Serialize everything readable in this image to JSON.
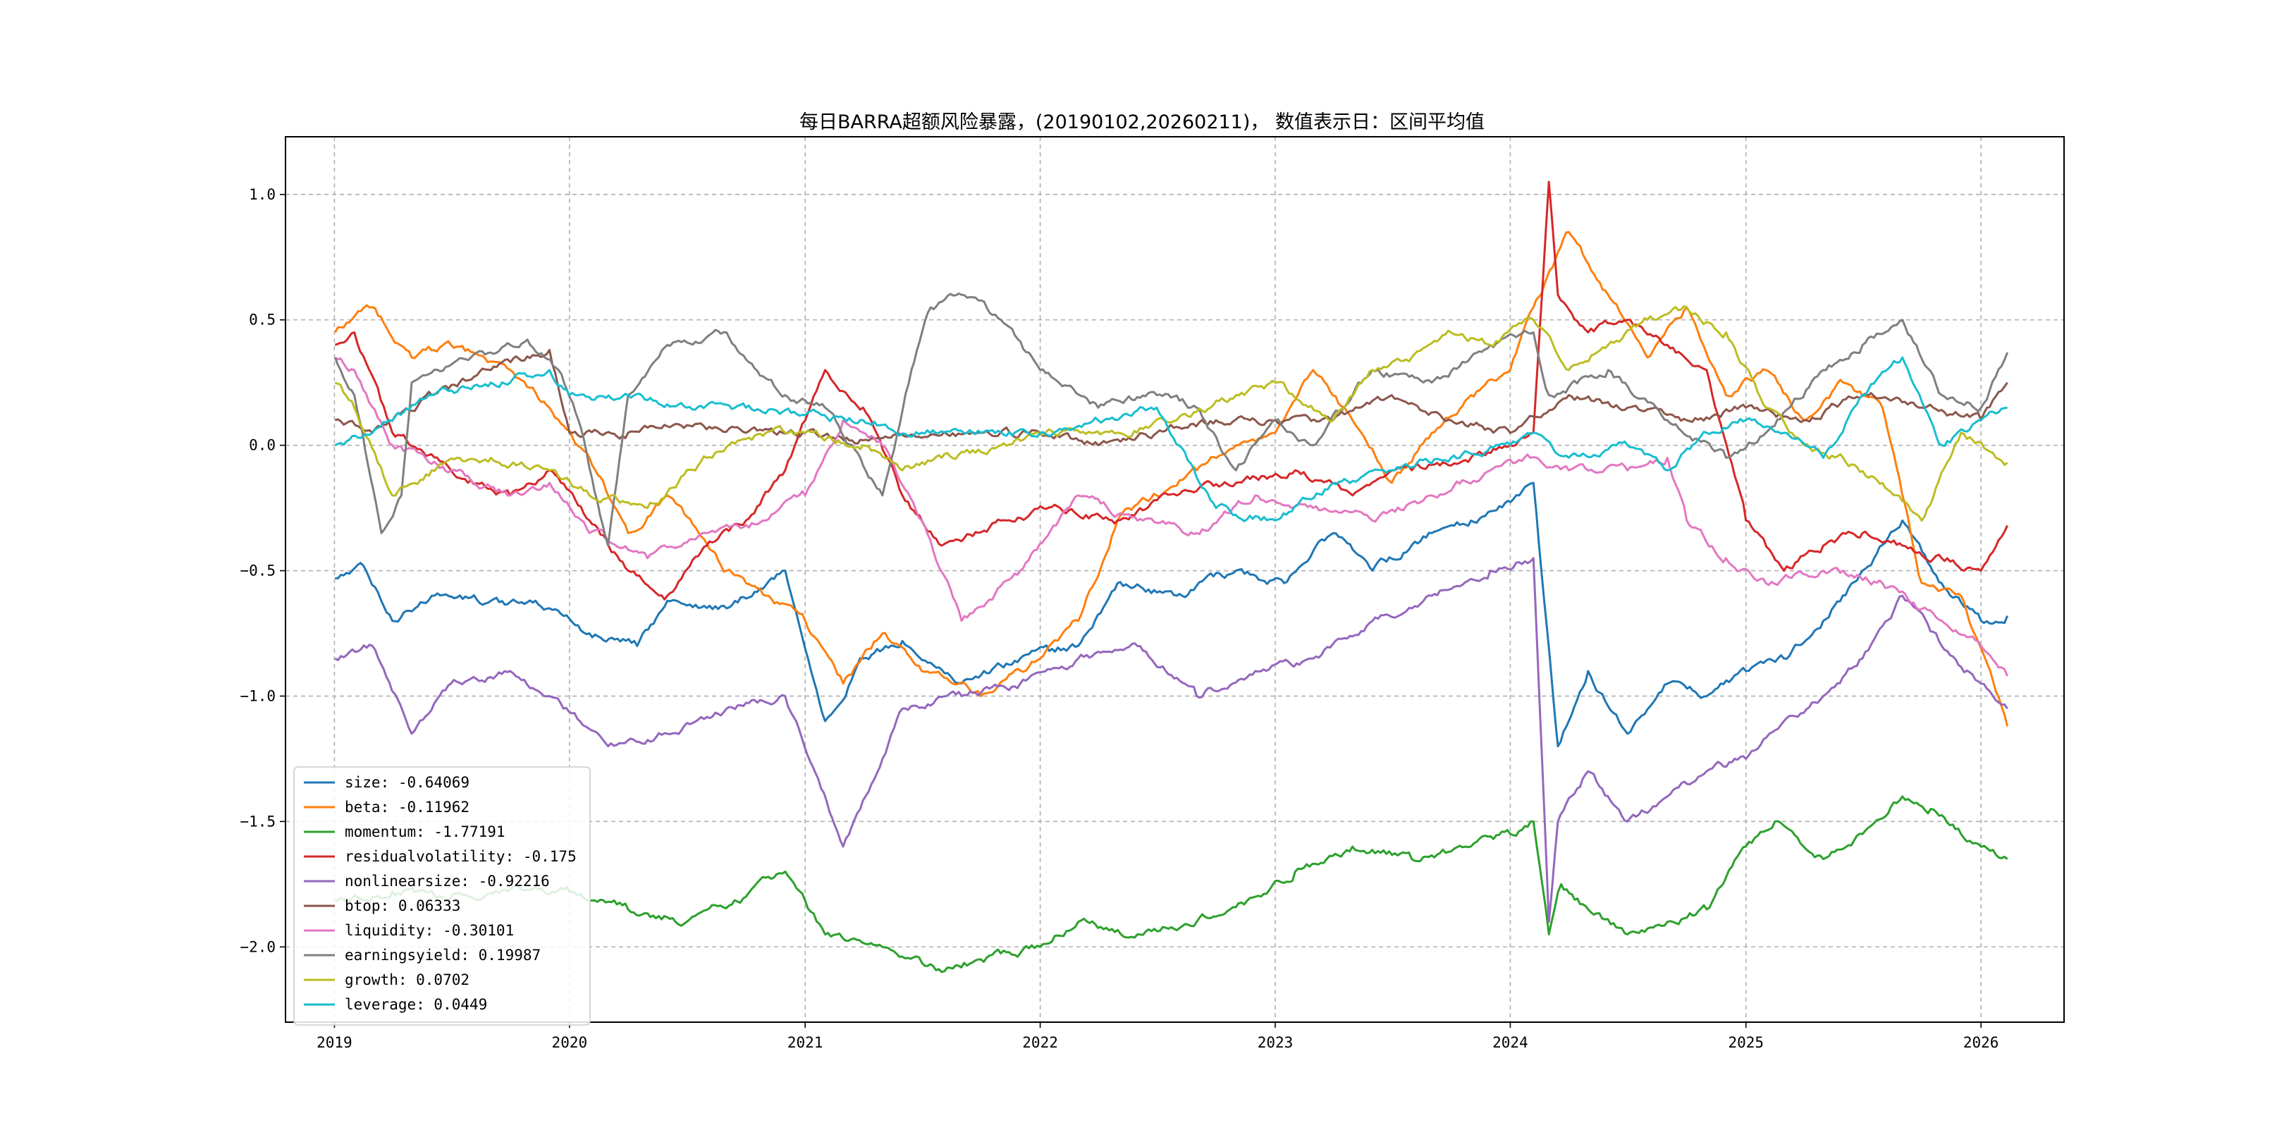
{
  "chart_data": {
    "type": "line",
    "title": "每日BARRA超额风险暴露，(20190102,20260211)， 数值表示日：区间平均值",
    "xlabel": "",
    "ylabel": "",
    "x_range": [
      "2018-10-17",
      "2026-05-10"
    ],
    "ylim": [
      -2.3,
      1.23
    ],
    "grid": true,
    "legend_position": "lower-left",
    "x_ticks": [
      {
        "date": "2019-01-01",
        "label": "2019"
      },
      {
        "date": "2020-01-01",
        "label": "2020"
      },
      {
        "date": "2021-01-01",
        "label": "2021"
      },
      {
        "date": "2022-01-01",
        "label": "2022"
      },
      {
        "date": "2023-01-01",
        "label": "2023"
      },
      {
        "date": "2024-01-01",
        "label": "2024"
      },
      {
        "date": "2025-01-01",
        "label": "2025"
      },
      {
        "date": "2026-01-01",
        "label": "2026"
      }
    ],
    "y_ticks": [
      {
        "value": 1.0,
        "label": "1.0"
      },
      {
        "value": 0.5,
        "label": "0.5"
      },
      {
        "value": 0.0,
        "label": "0.0"
      },
      {
        "value": -0.5,
        "label": "−0.5"
      },
      {
        "value": -1.0,
        "label": "−1.0"
      },
      {
        "value": -1.5,
        "label": "−1.5"
      },
      {
        "value": -2.0,
        "label": "−2.0"
      }
    ],
    "series": [
      {
        "name": "size",
        "legend": "size: -0.64069",
        "color": "#1f77b4",
        "x": [
          "2019-01-02",
          "2019-02-15",
          "2019-04-01",
          "2019-06-01",
          "2019-09-01",
          "2019-12-01",
          "2020-02-01",
          "2020-04-15",
          "2020-06-01",
          "2020-09-01",
          "2020-12-01",
          "2021-02-01",
          "2021-04-01",
          "2021-06-01",
          "2021-09-01",
          "2021-12-01",
          "2022-01-15",
          "2022-03-01",
          "2022-05-01",
          "2022-08-01",
          "2022-11-01",
          "2023-01-15",
          "2023-04-01",
          "2023-06-01",
          "2023-09-01",
          "2023-11-01",
          "2024-01-15",
          "2024-02-06",
          "2024-03-15",
          "2024-05-01",
          "2024-07-01",
          "2024-09-01",
          "2024-11-01",
          "2025-01-01",
          "2025-03-01",
          "2025-05-01",
          "2025-07-01",
          "2025-09-01",
          "2025-11-01",
          "2026-01-01",
          "2026-02-11"
        ],
        "values": [
          -0.53,
          -0.48,
          -0.7,
          -0.6,
          -0.62,
          -0.65,
          -0.75,
          -0.8,
          -0.62,
          -0.65,
          -0.5,
          -1.1,
          -0.85,
          -0.78,
          -0.95,
          -0.85,
          -0.82,
          -0.8,
          -0.55,
          -0.6,
          -0.5,
          -0.55,
          -0.35,
          -0.5,
          -0.35,
          -0.3,
          -0.2,
          -0.15,
          -1.2,
          -0.9,
          -1.15,
          -0.95,
          -1.0,
          -0.9,
          -0.85,
          -0.7,
          -0.5,
          -0.3,
          -0.55,
          -0.7,
          -0.68
        ]
      },
      {
        "name": "beta",
        "legend": "beta: -0.11962",
        "color": "#ff7f0e",
        "x": [
          "2019-01-02",
          "2019-03-01",
          "2019-05-01",
          "2019-07-01",
          "2019-10-01",
          "2019-12-01",
          "2020-02-01",
          "2020-04-01",
          "2020-06-01",
          "2020-09-01",
          "2020-11-01",
          "2021-01-01",
          "2021-03-01",
          "2021-05-01",
          "2021-07-01",
          "2021-10-01",
          "2022-01-01",
          "2022-03-01",
          "2022-05-01",
          "2022-07-01",
          "2022-09-01",
          "2022-11-01",
          "2023-01-01",
          "2023-03-01",
          "2023-05-01",
          "2023-07-01",
          "2023-09-01",
          "2023-11-01",
          "2024-01-01",
          "2024-02-06",
          "2024-04-01",
          "2024-06-01",
          "2024-08-01",
          "2024-10-01",
          "2024-12-01",
          "2025-02-01",
          "2025-04-01",
          "2025-06-01",
          "2025-08-01",
          "2025-10-01",
          "2025-12-01",
          "2026-02-11"
        ],
        "values": [
          0.45,
          0.55,
          0.35,
          0.4,
          0.3,
          0.15,
          -0.05,
          -0.35,
          -0.2,
          -0.5,
          -0.6,
          -0.7,
          -0.95,
          -0.75,
          -0.9,
          -1.0,
          -0.85,
          -0.7,
          -0.3,
          -0.2,
          -0.1,
          0.0,
          0.05,
          0.3,
          0.1,
          -0.15,
          0.05,
          0.2,
          0.3,
          0.55,
          0.85,
          0.6,
          0.35,
          0.55,
          0.2,
          0.3,
          0.1,
          0.25,
          0.15,
          -0.55,
          -0.6,
          -1.12
        ]
      },
      {
        "name": "momentum",
        "legend": "momentum: -1.77191",
        "color": "#2ca02c",
        "x": [
          "2019-01-02",
          "2019-04-01",
          "2019-07-01",
          "2019-10-01",
          "2020-01-01",
          "2020-04-01",
          "2020-07-01",
          "2020-10-01",
          "2020-12-01",
          "2021-02-01",
          "2021-05-01",
          "2021-08-01",
          "2021-10-01",
          "2022-01-01",
          "2022-03-01",
          "2022-06-01",
          "2022-09-01",
          "2022-12-01",
          "2023-02-01",
          "2023-05-01",
          "2023-08-01",
          "2023-11-01",
          "2024-01-01",
          "2024-02-06",
          "2024-03-01",
          "2024-03-20",
          "2024-05-01",
          "2024-07-01",
          "2024-09-01",
          "2024-11-01",
          "2025-01-01",
          "2025-02-15",
          "2025-05-01",
          "2025-07-01",
          "2025-09-01",
          "2025-10-15",
          "2025-12-01",
          "2026-02-11"
        ],
        "values": [
          -1.82,
          -1.78,
          -1.8,
          -1.77,
          -1.78,
          -1.85,
          -1.9,
          -1.8,
          -1.7,
          -1.95,
          -2.0,
          -2.1,
          -2.05,
          -2.0,
          -1.9,
          -1.95,
          -1.9,
          -1.8,
          -1.7,
          -1.6,
          -1.65,
          -1.6,
          -1.55,
          -1.5,
          -1.95,
          -1.75,
          -1.85,
          -1.95,
          -1.9,
          -1.85,
          -1.6,
          -1.5,
          -1.65,
          -1.55,
          -1.4,
          -1.45,
          -1.55,
          -1.65
        ]
      },
      {
        "name": "residualvolatility",
        "legend": "residualvolatility: -0.175",
        "color": "#d62728",
        "x": [
          "2019-01-02",
          "2019-02-01",
          "2019-04-01",
          "2019-07-01",
          "2019-10-01",
          "2019-12-01",
          "2020-02-01",
          "2020-04-01",
          "2020-06-01",
          "2020-08-01",
          "2020-10-01",
          "2020-12-01",
          "2021-02-01",
          "2021-04-01",
          "2021-06-01",
          "2021-08-01",
          "2021-11-01",
          "2022-02-01",
          "2022-05-01",
          "2022-08-01",
          "2022-11-01",
          "2023-02-01",
          "2023-05-01",
          "2023-08-01",
          "2023-11-01",
          "2024-01-01",
          "2024-02-06",
          "2024-03-01",
          "2024-03-15",
          "2024-05-01",
          "2024-07-01",
          "2024-09-01",
          "2024-11-01",
          "2025-01-01",
          "2025-03-01",
          "2025-05-01",
          "2025-07-01",
          "2025-09-01",
          "2025-11-01",
          "2026-01-01",
          "2026-02-11"
        ],
        "values": [
          0.4,
          0.45,
          0.05,
          -0.1,
          -0.2,
          -0.1,
          -0.3,
          -0.5,
          -0.6,
          -0.4,
          -0.3,
          -0.1,
          0.3,
          0.15,
          -0.2,
          -0.4,
          -0.3,
          -0.25,
          -0.3,
          -0.2,
          -0.15,
          -0.1,
          -0.2,
          -0.1,
          -0.05,
          0.0,
          0.05,
          1.05,
          0.6,
          0.45,
          0.5,
          0.4,
          0.3,
          -0.3,
          -0.5,
          -0.4,
          -0.35,
          -0.4,
          -0.45,
          -0.5,
          -0.32
        ]
      },
      {
        "name": "nonlinearsize",
        "legend": "nonlinearsize: -0.92216",
        "color": "#9467bd",
        "x": [
          "2019-01-02",
          "2019-03-01",
          "2019-05-01",
          "2019-07-01",
          "2019-10-01",
          "2019-12-01",
          "2020-03-01",
          "2020-06-01",
          "2020-09-01",
          "2020-12-01",
          "2021-03-01",
          "2021-06-01",
          "2021-09-01",
          "2021-12-01",
          "2022-03-01",
          "2022-06-01",
          "2022-09-01",
          "2022-12-01",
          "2023-03-01",
          "2023-06-01",
          "2023-09-01",
          "2023-12-01",
          "2024-02-06",
          "2024-03-01",
          "2024-03-15",
          "2024-05-01",
          "2024-07-01",
          "2024-09-01",
          "2024-11-01",
          "2025-01-01",
          "2025-03-01",
          "2025-05-01",
          "2025-07-01",
          "2025-09-01",
          "2025-11-01",
          "2026-01-01",
          "2026-02-11"
        ],
        "values": [
          -0.85,
          -0.8,
          -1.15,
          -0.95,
          -0.9,
          -1.0,
          -1.2,
          -1.15,
          -1.05,
          -1.0,
          -1.6,
          -1.05,
          -1.0,
          -0.95,
          -0.85,
          -0.8,
          -1.0,
          -0.9,
          -0.85,
          -0.7,
          -0.6,
          -0.5,
          -0.45,
          -1.9,
          -1.5,
          -1.3,
          -1.5,
          -1.4,
          -1.3,
          -1.25,
          -1.1,
          -1.0,
          -0.85,
          -0.6,
          -0.8,
          -0.95,
          -1.05
        ]
      },
      {
        "name": "btop",
        "legend": "btop: 0.06333",
        "color": "#8c564b",
        "x": [
          "2019-01-02",
          "2019-03-01",
          "2019-06-01",
          "2019-09-01",
          "2019-12-01",
          "2020-01-01",
          "2020-04-01",
          "2020-07-01",
          "2020-10-01",
          "2021-01-01",
          "2021-04-01",
          "2021-07-01",
          "2021-10-01",
          "2022-01-01",
          "2022-04-01",
          "2022-07-01",
          "2022-10-01",
          "2023-01-01",
          "2023-04-01",
          "2023-07-01",
          "2023-10-01",
          "2024-01-01",
          "2024-04-01",
          "2024-07-01",
          "2024-10-01",
          "2025-01-01",
          "2025-04-01",
          "2025-07-01",
          "2025-10-01",
          "2026-01-01",
          "2026-02-11"
        ],
        "values": [
          0.1,
          0.05,
          0.2,
          0.3,
          0.38,
          0.05,
          0.05,
          0.08,
          0.05,
          0.05,
          0.02,
          0.03,
          0.05,
          0.05,
          0.0,
          0.05,
          0.1,
          0.1,
          0.1,
          0.2,
          0.1,
          0.05,
          0.2,
          0.15,
          0.1,
          0.15,
          0.1,
          0.2,
          0.15,
          0.1,
          0.25
        ]
      },
      {
        "name": "liquidity",
        "legend": "liquidity: -0.30101",
        "color": "#e377c2",
        "x": [
          "2019-01-02",
          "2019-02-01",
          "2019-04-01",
          "2019-07-01",
          "2019-10-01",
          "2019-12-01",
          "2020-02-01",
          "2020-05-01",
          "2020-08-01",
          "2020-11-01",
          "2021-01-01",
          "2021-03-01",
          "2021-05-01",
          "2021-07-01",
          "2021-09-01",
          "2021-12-01",
          "2022-03-01",
          "2022-06-01",
          "2022-09-01",
          "2022-12-01",
          "2023-03-01",
          "2023-06-01",
          "2023-09-01",
          "2023-12-01",
          "2024-02-01",
          "2024-04-01",
          "2024-07-01",
          "2024-09-01",
          "2024-10-01",
          "2024-12-01",
          "2025-02-01",
          "2025-05-01",
          "2025-08-01",
          "2025-11-01",
          "2026-01-01",
          "2026-02-11"
        ],
        "values": [
          0.35,
          0.3,
          0.0,
          -0.1,
          -0.2,
          -0.15,
          -0.35,
          -0.45,
          -0.35,
          -0.3,
          -0.2,
          0.1,
          0.0,
          -0.3,
          -0.7,
          -0.5,
          -0.2,
          -0.3,
          -0.35,
          -0.2,
          -0.25,
          -0.3,
          -0.2,
          -0.1,
          -0.05,
          -0.1,
          -0.1,
          -0.05,
          -0.3,
          -0.45,
          -0.55,
          -0.5,
          -0.55,
          -0.7,
          -0.8,
          -0.92
        ]
      },
      {
        "name": "earningsyield",
        "legend": "earningsyield: 0.19987",
        "color": "#7f7f7f",
        "x": [
          "2019-01-02",
          "2019-02-01",
          "2019-03-15",
          "2019-04-15",
          "2019-05-01",
          "2019-08-01",
          "2019-11-01",
          "2019-12-15",
          "2020-01-15",
          "2020-03-01",
          "2020-04-01",
          "2020-06-01",
          "2020-09-01",
          "2020-12-01",
          "2021-02-01",
          "2021-03-15",
          "2021-05-01",
          "2021-06-15",
          "2021-07-15",
          "2021-09-01",
          "2021-11-01",
          "2022-01-01",
          "2022-04-01",
          "2022-07-01",
          "2022-09-01",
          "2022-11-01",
          "2023-01-01",
          "2023-03-01",
          "2023-06-01",
          "2023-09-01",
          "2023-12-01",
          "2024-02-06",
          "2024-03-01",
          "2024-06-01",
          "2024-09-01",
          "2024-12-01",
          "2025-02-01",
          "2025-05-01",
          "2025-07-01",
          "2025-09-01",
          "2025-11-01",
          "2026-01-01",
          "2026-02-11"
        ],
        "values": [
          0.35,
          0.2,
          -0.35,
          -0.2,
          0.25,
          0.35,
          0.4,
          0.3,
          0.1,
          -0.4,
          0.2,
          0.4,
          0.45,
          0.2,
          0.15,
          0.0,
          -0.2,
          0.3,
          0.55,
          0.6,
          0.5,
          0.3,
          0.15,
          0.2,
          0.15,
          -0.1,
          0.1,
          0.0,
          0.3,
          0.25,
          0.4,
          0.45,
          0.2,
          0.3,
          0.1,
          -0.05,
          0.05,
          0.3,
          0.4,
          0.5,
          0.2,
          0.15,
          0.37
        ]
      },
      {
        "name": "growth",
        "legend": "growth: 0.0702",
        "color": "#bcbd22",
        "x": [
          "2019-01-02",
          "2019-02-01",
          "2019-04-01",
          "2019-06-01",
          "2019-09-01",
          "2019-12-01",
          "2020-02-01",
          "2020-05-01",
          "2020-08-01",
          "2020-11-01",
          "2021-01-01",
          "2021-04-01",
          "2021-06-01",
          "2021-08-01",
          "2021-11-01",
          "2022-02-01",
          "2022-05-01",
          "2022-08-01",
          "2022-11-01",
          "2023-01-01",
          "2023-04-01",
          "2023-06-01",
          "2023-08-01",
          "2023-10-01",
          "2023-12-01",
          "2024-02-06",
          "2024-04-01",
          "2024-06-01",
          "2024-08-01",
          "2024-10-01",
          "2024-12-01",
          "2025-02-01",
          "2025-04-01",
          "2025-06-01",
          "2025-08-01",
          "2025-10-01",
          "2025-12-01",
          "2026-02-11"
        ],
        "values": [
          0.25,
          0.15,
          -0.2,
          -0.1,
          -0.05,
          -0.1,
          -0.2,
          -0.25,
          -0.05,
          0.05,
          0.05,
          0.0,
          -0.1,
          -0.05,
          0.0,
          0.05,
          0.05,
          0.1,
          0.2,
          0.25,
          0.1,
          0.3,
          0.35,
          0.45,
          0.4,
          0.5,
          0.3,
          0.4,
          0.5,
          0.55,
          0.45,
          0.15,
          0.0,
          -0.05,
          -0.15,
          -0.3,
          0.05,
          -0.07
        ]
      },
      {
        "name": "leverage",
        "legend": "leverage: 0.0449",
        "color": "#17becf",
        "x": [
          "2019-01-02",
          "2019-03-01",
          "2019-06-01",
          "2019-09-01",
          "2019-12-01",
          "2020-01-01",
          "2020-04-01",
          "2020-07-01",
          "2020-10-01",
          "2021-01-01",
          "2021-04-01",
          "2021-07-01",
          "2021-10-01",
          "2022-01-01",
          "2022-04-01",
          "2022-07-01",
          "2022-10-01",
          "2023-01-01",
          "2023-04-01",
          "2023-07-01",
          "2023-10-01",
          "2024-01-01",
          "2024-02-06",
          "2024-04-01",
          "2024-07-01",
          "2024-09-01",
          "2024-11-01",
          "2025-01-01",
          "2025-03-01",
          "2025-05-01",
          "2025-07-01",
          "2025-09-01",
          "2025-11-01",
          "2026-01-01",
          "2026-02-11"
        ],
        "values": [
          0.0,
          0.05,
          0.2,
          0.25,
          0.3,
          0.2,
          0.2,
          0.15,
          0.15,
          0.12,
          0.1,
          0.05,
          0.05,
          0.05,
          0.1,
          0.15,
          -0.25,
          -0.3,
          -0.15,
          -0.1,
          -0.05,
          0.0,
          0.05,
          -0.05,
          0.0,
          -0.1,
          0.05,
          0.1,
          0.05,
          -0.05,
          0.2,
          0.35,
          0.0,
          0.1,
          0.15
        ]
      }
    ]
  }
}
